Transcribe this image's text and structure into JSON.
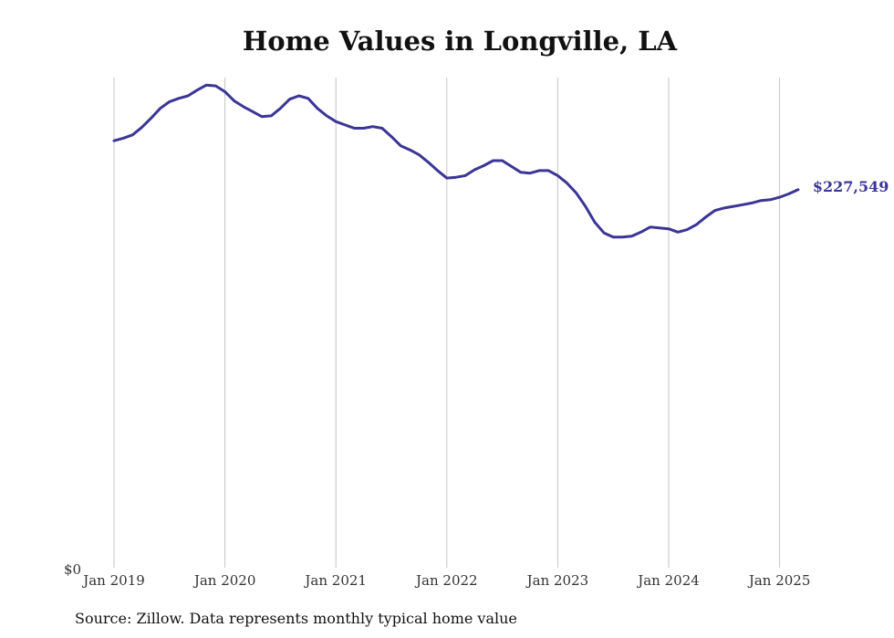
{
  "chart_data": {
    "type": "line",
    "title": "Home Values in Longville, LA",
    "source_note": "Source: Zillow. Data represents monthly typical home value",
    "y_tick_label": "$0",
    "end_label": "$227,549",
    "x_tick_labels": [
      "Jan 2019",
      "Jan 2020",
      "Jan 2021",
      "Jan 2022",
      "Jan 2023",
      "Jan 2024",
      "Jan 2025"
    ],
    "x_tick_dates": [
      "2019-01",
      "2020-01",
      "2021-01",
      "2022-01",
      "2023-01",
      "2024-01",
      "2025-01"
    ],
    "ylim": [
      0,
      295000
    ],
    "grid": "vertical",
    "legend": "none",
    "line_color": "#3b3596",
    "series": [
      {
        "x": [
          "2019-01",
          "2019-02",
          "2019-03",
          "2019-04",
          "2019-05",
          "2019-06",
          "2019-07",
          "2019-08",
          "2019-09",
          "2019-10",
          "2019-11",
          "2019-12",
          "2020-01",
          "2020-02",
          "2020-03",
          "2020-04",
          "2020-05",
          "2020-06",
          "2020-07",
          "2020-08",
          "2020-09",
          "2020-10",
          "2020-11",
          "2020-12",
          "2021-01",
          "2021-02",
          "2021-03",
          "2021-04",
          "2021-05",
          "2021-06",
          "2021-07",
          "2021-08",
          "2021-09",
          "2021-10",
          "2021-11",
          "2021-12",
          "2022-01",
          "2022-02",
          "2022-03",
          "2022-04",
          "2022-05",
          "2022-06",
          "2022-07",
          "2022-08",
          "2022-09",
          "2022-10",
          "2022-11",
          "2022-12",
          "2023-01",
          "2023-02",
          "2023-03",
          "2023-04",
          "2023-05",
          "2023-06",
          "2023-07",
          "2023-08",
          "2023-09",
          "2023-10",
          "2023-11",
          "2023-12",
          "2024-01",
          "2024-02",
          "2024-03",
          "2024-04",
          "2024-05",
          "2024-06",
          "2024-07",
          "2024-08",
          "2024-09",
          "2024-10",
          "2024-11",
          "2024-12",
          "2025-01",
          "2025-02",
          "2025-03"
        ],
        "values": [
          257000,
          258500,
          260500,
          265000,
          270500,
          276500,
          280500,
          282500,
          284000,
          287500,
          290500,
          290000,
          286500,
          281000,
          277500,
          274500,
          271500,
          272000,
          276500,
          282000,
          284000,
          282500,
          276500,
          272000,
          268500,
          266500,
          264500,
          264500,
          265500,
          264500,
          259500,
          254000,
          251500,
          248500,
          244000,
          239000,
          234500,
          235000,
          236000,
          239500,
          242000,
          245000,
          245000,
          241500,
          238000,
          237500,
          239000,
          239000,
          236000,
          231500,
          225500,
          217500,
          208000,
          201500,
          199000,
          199000,
          199500,
          202000,
          205000,
          204500,
          204000,
          202000,
          203500,
          206500,
          211000,
          215000,
          216500,
          217500,
          218500,
          219500,
          221000,
          221500,
          223000,
          225000,
          227549
        ]
      }
    ]
  }
}
